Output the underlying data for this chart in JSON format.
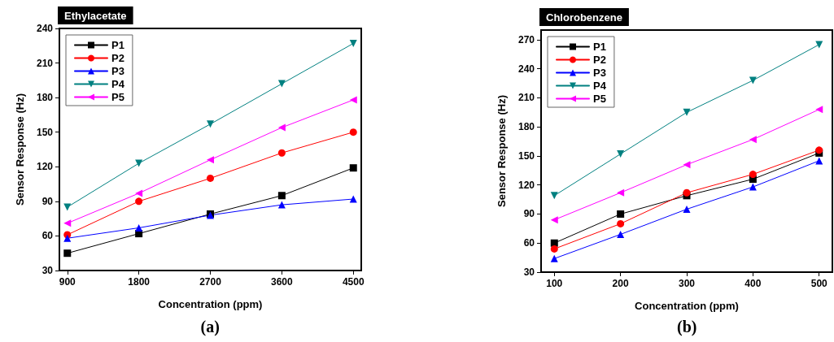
{
  "chart_data": [
    {
      "type": "line",
      "title": "Ethylacetate",
      "xlabel": "Concentration (ppm)",
      "ylabel": "Sensor Response (Hz)",
      "annotations": [
        "(a)"
      ],
      "x": [
        900,
        1800,
        2700,
        3600,
        4500
      ],
      "xlim": [
        800,
        4600
      ],
      "xticks": [
        900,
        1800,
        2700,
        3600,
        4500
      ],
      "ylim": [
        30,
        240
      ],
      "yticks": [
        30,
        60,
        90,
        120,
        150,
        180,
        210,
        240
      ],
      "grid": false,
      "legend": "top left",
      "line_style": "solid",
      "series": [
        {
          "name": "P1",
          "color": "#000000",
          "marker": "square",
          "values": [
            45,
            62,
            79,
            95,
            119
          ]
        },
        {
          "name": "P2",
          "color": "#ff0000",
          "marker": "circle",
          "values": [
            61,
            90,
            110,
            132,
            150
          ]
        },
        {
          "name": "P3",
          "color": "#0000ff",
          "marker": "triangle",
          "values": [
            58,
            67,
            78,
            87,
            92
          ]
        },
        {
          "name": "P4",
          "color": "#008080",
          "marker": "triangle-down",
          "values": [
            85,
            123,
            157,
            192,
            227
          ]
        },
        {
          "name": "P5",
          "color": "#ff00ff",
          "marker": "triangle-left",
          "values": [
            71,
            97,
            126,
            154,
            178
          ]
        }
      ]
    },
    {
      "type": "line",
      "title": "Chlorobenzene",
      "xlabel": "Concentration (ppm)",
      "ylabel": "Sensor Response (Hz)",
      "annotations": [
        "(b)"
      ],
      "x": [
        100,
        200,
        300,
        400,
        500
      ],
      "xlim": [
        80,
        520
      ],
      "xticks": [
        100,
        200,
        300,
        400,
        500
      ],
      "ylim": [
        30,
        280
      ],
      "yticks": [
        30,
        60,
        90,
        120,
        150,
        180,
        210,
        240,
        270
      ],
      "grid": false,
      "legend": "top left",
      "line_style": "solid",
      "series": [
        {
          "name": "P1",
          "color": "#000000",
          "marker": "square",
          "values": [
            60,
            90,
            109,
            126,
            153
          ]
        },
        {
          "name": "P2",
          "color": "#ff0000",
          "marker": "circle",
          "values": [
            54,
            80,
            112,
            131,
            156
          ]
        },
        {
          "name": "P3",
          "color": "#0000ff",
          "marker": "triangle",
          "values": [
            44,
            69,
            95,
            118,
            145
          ]
        },
        {
          "name": "P4",
          "color": "#008080",
          "marker": "triangle-down",
          "values": [
            109,
            152,
            195,
            228,
            265
          ]
        },
        {
          "name": "P5",
          "color": "#ff00ff",
          "marker": "triangle-left",
          "values": [
            84,
            112,
            141,
            167,
            198
          ]
        }
      ]
    }
  ]
}
